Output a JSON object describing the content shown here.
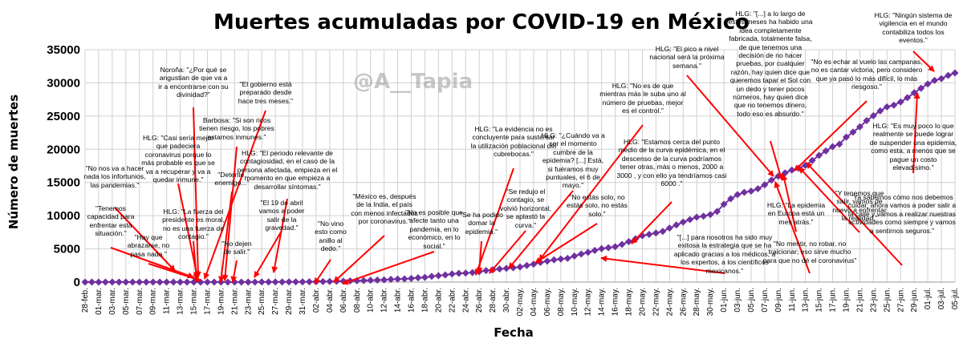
{
  "chart_data": {
    "type": "line",
    "title": "Muertes acumuladas por COVID-19 en México",
    "xlabel": "Fecha",
    "ylabel": "Número de muertes",
    "ylim": [
      0,
      35000
    ],
    "yticks": [
      "0",
      "5000",
      "10000",
      "15000",
      "20000",
      "25000",
      "30000",
      "35000"
    ],
    "grid": true,
    "series_color": "#7030a0",
    "annotation_color": "#ff0000",
    "watermark": "@A__Tapia",
    "x_ticks": [
      "28-feb.",
      "01-mar.",
      "03-mar.",
      "05-mar.",
      "07-mar.",
      "09-mar.",
      "11-mar.",
      "13-mar.",
      "15-mar.",
      "17-mar.",
      "19-mar.",
      "21-mar.",
      "23-mar.",
      "25-mar.",
      "27-mar.",
      "29-mar.",
      "31-mar.",
      "02-abr.",
      "04-abr.",
      "06-abr.",
      "08-abr.",
      "10-abr.",
      "12-abr.",
      "14-abr.",
      "16-abr.",
      "18-abr.",
      "20-abr.",
      "22-abr.",
      "24-abr.",
      "26-abr.",
      "28-abr.",
      "30-abr.",
      "02-may.",
      "04-may.",
      "06-may.",
      "08-may.",
      "10-may.",
      "12-may.",
      "14-may.",
      "16-may.",
      "18-may.",
      "20-may.",
      "22-may.",
      "24-may.",
      "26-may.",
      "28-may.",
      "30-may.",
      "01-jun.",
      "03-jun.",
      "05-jun.",
      "07-jun.",
      "09-jun.",
      "11-jun.",
      "13-jun.",
      "15-jun.",
      "17-jun.",
      "19-jun.",
      "21-jun.",
      "23-jun.",
      "25-jun.",
      "27-jun.",
      "29-jun.",
      "01-jul.",
      "03-jul.",
      "05-jul."
    ],
    "series": [
      {
        "name": "Muertes acumuladas",
        "x_start": "28-feb.",
        "x_step_days": 1,
        "values": [
          0,
          0,
          0,
          0,
          0,
          0,
          0,
          0,
          0,
          0,
          0,
          0,
          0,
          0,
          0,
          0,
          0,
          0,
          0,
          0,
          1,
          2,
          2,
          4,
          5,
          6,
          8,
          12,
          16,
          20,
          28,
          29,
          37,
          50,
          60,
          79,
          94,
          125,
          141,
          174,
          194,
          233,
          273,
          296,
          332,
          406,
          449,
          486,
          546,
          650,
          712,
          857,
          970,
          1069,
          1221,
          1305,
          1351,
          1434,
          1569,
          1732,
          1859,
          1972,
          2061,
          2154,
          2271,
          2507,
          2704,
          2961,
          3160,
          3353,
          3465,
          3573,
          3926,
          4220,
          4477,
          4767,
          5045,
          5177,
          5332,
          5666,
          6090,
          6510,
          6989,
          7179,
          7394,
          7633,
          8134,
          8597,
          9044,
          9415,
          9779,
          9930,
          10167,
          10637,
          11729,
          12545,
          13170,
          13511,
          13699,
          14053,
          14649,
          15357,
          15944,
          16448,
          16872,
          17141,
          17580,
          18310,
          19080,
          19747,
          20394,
          20781,
          21825,
          22584,
          23377,
          24324,
          25060,
          25779,
          26381,
          26648,
          27121,
          27769,
          28510,
          29189,
          29843,
          30366,
          30639,
          31119,
          31500
        ]
      }
    ],
    "annotations": [
      {
        "text": "\"No nos va a hacer nada los infortunios, las pandemias.\"",
        "x": "28-feb."
      },
      {
        "text": "\"Tenemos capacidad para enfrentar esta situación.\"",
        "x": "01-mar."
      },
      {
        "text": "\"Hay que abrazarse, no pasa nada.\"",
        "x": "04-mar."
      },
      {
        "text": "HLG: \"Casi sería mejor que padeciera coronavirus porque lo más probable es que se va a recuperar y va a quedar inmune.\"",
        "x": "16-mar."
      },
      {
        "text": "HLG: \"La fuerza del presidente es moral, no es una fuerza de contagio.\"",
        "x": "16-mar."
      },
      {
        "text": "Noroña: \"¿Por qué se angustian de que va a ir a encontrarse con su divinidad?\"",
        "x": "17-mar."
      },
      {
        "text": "\"El gobierno está preparado desde hace tres meses.\"",
        "x": "19-mar."
      },
      {
        "text": "Barbosa: \"Si son ricos tienen riesgo, los pobres estamos inmunes.\"",
        "x": "25-mar."
      },
      {
        "text": "\"Detente, enemigo...\"",
        "x": "18-mar."
      },
      {
        "text": "\"No dejen de salir.\"",
        "x": "21-mar."
      },
      {
        "text": "HLG: \"El periodo relevante de contagiosidad, en el caso de la persona afectada, empieza en el momento en que empieza a desarrollar síntomas.\"",
        "x": "29-mar."
      },
      {
        "text": "\"El 19 de abril vamos a poder salir de la gravedad.\"",
        "x": "27-mar."
      },
      {
        "text": "\"No vino esto como anillo al dedo.\"",
        "x": "02-abr."
      },
      {
        "text": "\"México es, después de la India, el país con menos infectados por coronavirus.\"",
        "x": "05-abr."
      },
      {
        "text": "\"No es posible que afecte tanto una pandemia, en lo económico, en lo social.\"",
        "x": "07-abr."
      },
      {
        "text": "HLG: \"La evidencia no es concluyente para sustentar la utilización poblacional del cubrebocas.\"",
        "x": "26-abr."
      },
      {
        "text": "\"Se ha podido domar la epidemia.\"",
        "x": "26-abr."
      },
      {
        "text": "\"Se redujo el contagio, se volvió horizontal, se aplastó la curva.\"",
        "x": "29-abr."
      },
      {
        "text": "HLG: \"¿Cuándo va a ser el momento cumbre de la epidemia? [...] Está, si fuéramos muy puntuales, el 6 de mayo.\"",
        "x": "02-may."
      },
      {
        "text": "\"No estás solo, no estás solo, no estás solo.\"",
        "x": "06-may."
      },
      {
        "text": "HLG: \"No es de que mientras más le suba uno al número de pruebas, mejor es el control.\"",
        "x": "04-may."
      },
      {
        "text": "HLG: \"Estamos cerca del punto medio de la curva epidémica, en el descenso de la curva podríamos tener otras, más o menos, 2000 a 3000 , y con ello ya tendríamos casi 6000 .\"",
        "x": "18-may."
      },
      {
        "text": "\"[...] para nosotros ha sido muy exitosa la estrategia que se ha aplicado gracias a los médicos, a los expertos, a los científicos mexicanos.\"",
        "x": "17-may."
      },
      {
        "text": "HLG: \"El pico a nivel nacional será la próxima semana.\"",
        "x": "11-jun."
      },
      {
        "text": "HLG: \"[...] a lo largo de estos meses ha habido una idea completamente fabricada, totalmente falsa, de que tenemos una decisión de no hacer pruebas, por cualquier razón, hay quien dice que queremos tapar el Sol con un dedo y tener pocos números, hay quien dice que no tenemos dinero, todo eso es absurdo.\"",
        "x": "12-jun."
      },
      {
        "text": "\"No es echar al vuelo las campanas, no es cantar victoria, pero considero que ya pasó lo más difícil, lo más riesgoso.\"",
        "x": "13-jun."
      },
      {
        "text": "HLG: \"Ningún sistema de vigilencia en el mundo contabiliza todos los eventos.\"",
        "x": "05-jul."
      },
      {
        "text": "HLG: \"La epidemia en Europa está un mes atrás.\"",
        "x": "12-jun."
      },
      {
        "text": "\"No mentir, no robar, no traicionar; eso sirve mucho para que no dé el coronavirus\"",
        "x": "11-jun."
      },
      {
        "text": "\"Y tenemos que salir, vamos de nuevo a enfrentar la realidad.\"",
        "x": "14-jun."
      },
      {
        "text": "HLG: \"Es muy poco lo que realmente se puede lograr de suspender una epidemia, como esta, a menos que se pague un costo elevadísimo.\"",
        "x": "03-jul."
      },
      {
        "text": "\"Ya sabemos cómo nos debemos cuidar, ahora vamos a poder salir a la calle y vamos a realizar nuestras actividades como siempre y vamos a sentirnos seguros.\"",
        "x": "15-jun."
      }
    ]
  }
}
